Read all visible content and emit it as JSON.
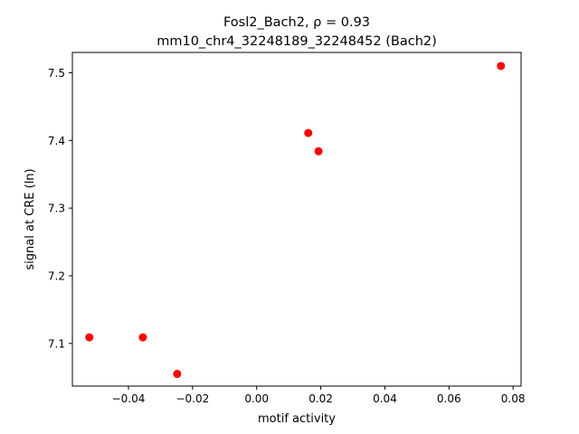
{
  "chart_data": {
    "type": "scatter",
    "title_line1": "Fosl2_Bach2, ρ = 0.93",
    "title_line2": "mm10_chr4_32248189_32248452 (Bach2)",
    "xlabel": "motif activity",
    "ylabel": "signal at CRE (ln)",
    "xlim": [
      -0.0575,
      0.0825
    ],
    "ylim": [
      7.037,
      7.53
    ],
    "grid": false,
    "x_ticks": [
      -0.04,
      -0.02,
      0.0,
      0.02,
      0.04,
      0.06,
      0.08
    ],
    "x_tick_labels": [
      "−0.04",
      "−0.02",
      "0.00",
      "0.02",
      "0.04",
      "0.06",
      "0.08"
    ],
    "y_ticks": [
      7.1,
      7.2,
      7.3,
      7.4,
      7.5
    ],
    "y_tick_labels": [
      "7.1",
      "7.2",
      "7.3",
      "7.4",
      "7.5"
    ],
    "marker_color": "#ff0000",
    "points": [
      {
        "x": -0.0522,
        "y": 7.109
      },
      {
        "x": -0.0355,
        "y": 7.109
      },
      {
        "x": -0.0248,
        "y": 7.055
      },
      {
        "x": 0.0161,
        "y": 7.411
      },
      {
        "x": 0.0193,
        "y": 7.384
      },
      {
        "x": 0.0762,
        "y": 7.51
      }
    ]
  }
}
